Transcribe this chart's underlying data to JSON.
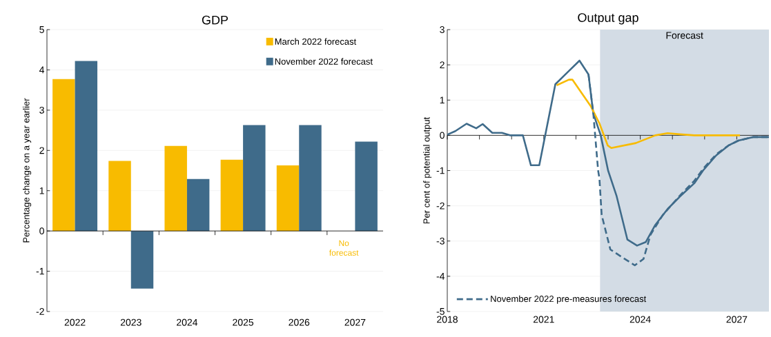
{
  "chart_data": [
    {
      "type": "bar",
      "title": "GDP",
      "ylabel": "Percentage change on a year earlier",
      "categories": [
        "2022",
        "2023",
        "2024",
        "2025",
        "2026",
        "2027"
      ],
      "series": [
        {
          "name": "March 2022 forecast",
          "color": "#f8bb00",
          "values": [
            3.77,
            1.74,
            2.11,
            1.77,
            1.63,
            null
          ]
        },
        {
          "name": "November 2022 forecast",
          "color": "#3f6b8a",
          "values": [
            4.22,
            -1.43,
            1.29,
            2.63,
            2.63,
            2.22
          ]
        }
      ],
      "ylim": [
        -2,
        5
      ],
      "yticks": [
        -2,
        -1,
        0,
        1,
        2,
        3,
        4,
        5
      ],
      "grid": "y",
      "legend": "top right",
      "annotations": [
        "No forecast"
      ]
    },
    {
      "type": "line",
      "title": "Output gap",
      "ylabel": "Per cent of potential output",
      "series": [
        {
          "color": "#3f6b8a",
          "x": [
            2018.0,
            2018.25,
            2018.6,
            2018.9,
            2019.1,
            2019.4,
            2019.7,
            2019.95,
            2020.35,
            2020.6,
            2020.86,
            2021.36,
            2021.75,
            2022.11,
            2022.39,
            2022.54,
            2022.77,
            2023.0,
            2023.26,
            2023.6,
            2023.9,
            2024.17,
            2024.47,
            2024.85,
            2025.23,
            2025.68,
            2025.95,
            2026.36,
            2026.74,
            2027.05,
            2027.5,
            2028.0
          ],
          "values": [
            0.02,
            0.12,
            0.33,
            0.2,
            0.32,
            0.07,
            0.07,
            0,
            0,
            -0.85,
            -0.85,
            1.45,
            1.8,
            2.12,
            1.73,
            0.62,
            0,
            -1.0,
            -1.71,
            -2.96,
            -3.13,
            -3.03,
            -2.54,
            -2.09,
            -1.74,
            -1.36,
            -1.0,
            -0.57,
            -0.29,
            -0.15,
            -0.05,
            -0.05
          ]
        },
        {
          "color": "#f8bb00",
          "x": [
            2021.4,
            2021.78,
            2021.89,
            2022.2,
            2022.46,
            2022.73,
            2022.99,
            2023.1,
            2023.86,
            2024.47,
            2024.85,
            2025.23,
            2025.68,
            2027.1
          ],
          "values": [
            1.42,
            1.58,
            1.58,
            1.17,
            0.83,
            0.34,
            -0.29,
            -0.36,
            -0.22,
            0,
            0.06,
            0.03,
            0,
            0
          ]
        },
        {
          "name": "November 2022 pre-measures forecast",
          "color": "#3f6b8a",
          "line_style": "dashed",
          "x": [
            2022.39,
            2022.54,
            2022.69,
            2022.73,
            2022.8,
            2023.07,
            2023.4,
            2023.83,
            2024.1,
            2024.32,
            2024.7,
            2025.23,
            2025.68,
            2025.98,
            2026.36,
            2026.74,
            2027.05,
            2027.5,
            2028.0
          ],
          "values": [
            1.73,
            0.62,
            -1.0,
            -1.22,
            -2.26,
            -3.24,
            -3.44,
            -3.69,
            -3.51,
            -2.82,
            -2.26,
            -1.71,
            -1.29,
            -0.92,
            -0.54,
            -0.29,
            -0.15,
            -0.05,
            -0.05
          ]
        }
      ],
      "xlim": [
        2018,
        2028
      ],
      "xticks": [
        2018,
        {
          "value": 2019,
          "label": null
        },
        {
          "value": 2020,
          "label": null
        },
        2021,
        {
          "value": 2022,
          "label": null
        },
        {
          "value": 2023,
          "label": null
        },
        2024,
        {
          "value": 2025,
          "label": null
        },
        {
          "value": 2026,
          "label": null
        },
        2027
      ],
      "ylim": [
        -5,
        3
      ],
      "yticks": [
        -5,
        -4,
        -3,
        -2,
        -1,
        0,
        1,
        2,
        3
      ],
      "grid": "y",
      "legend": "bottom left",
      "marker": "none",
      "bands": [
        {
          "axis": "x",
          "from": 2022.75,
          "to": 2028,
          "label": "Forecast",
          "color": "#d3dce5"
        }
      ]
    }
  ]
}
